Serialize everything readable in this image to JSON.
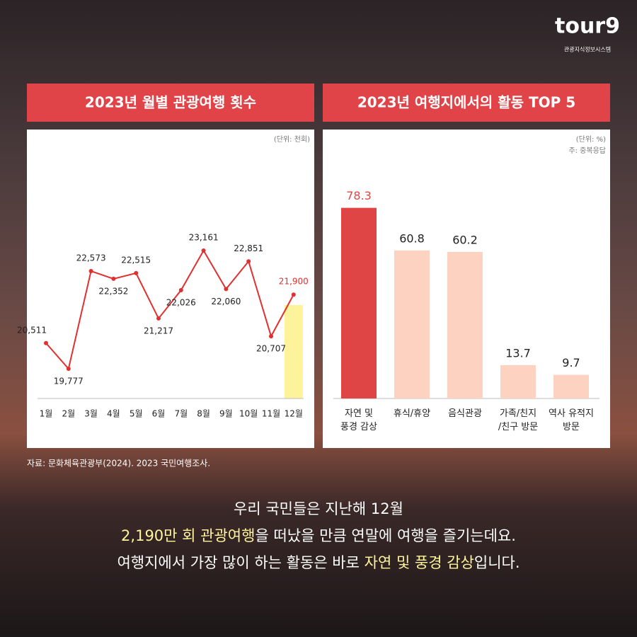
{
  "logo": {
    "brand": "tour9",
    "subtitle": "관광지식정보시스템"
  },
  "chart_data": [
    {
      "type": "line",
      "title": "2023년 월별 관광여행 횟수",
      "unit_note": "(단위: 천회)",
      "categories": [
        "1월",
        "2월",
        "3월",
        "4월",
        "5월",
        "6월",
        "7월",
        "8월",
        "9월",
        "10월",
        "11월",
        "12월"
      ],
      "values": [
        20511,
        19777,
        22573,
        22352,
        22515,
        21217,
        22026,
        23161,
        22060,
        22851,
        20707,
        21900
      ],
      "value_labels": [
        "20,511",
        "19,777",
        "22,573",
        "22,352",
        "22,515",
        "21,217",
        "22,026",
        "23,161",
        "22,060",
        "22,851",
        "20,707",
        "21,900"
      ],
      "color": "#e03030",
      "highlight": {
        "category": "12월",
        "color": "#fdf39a",
        "label_color": "#e03030"
      }
    },
    {
      "type": "bar",
      "title": "2023년 여행지에서의 활동 TOP 5",
      "unit_note": "(단위: %)",
      "note": "주: 중복응답",
      "categories": [
        "자연 및\n풍경 감상",
        "휴식/휴양",
        "음식관광",
        "가족/친지\n/친구 방문",
        "역사 유적지\n방문"
      ],
      "values": [
        78.3,
        60.8,
        60.2,
        13.7,
        9.7
      ],
      "colors": [
        "#e04545",
        "#fdd2c0",
        "#fdd2c0",
        "#fdd2c0",
        "#fdd2c0"
      ],
      "label_colors": [
        "#e04545",
        "#222222",
        "#222222",
        "#222222",
        "#222222"
      ]
    }
  ],
  "source": "자료: 문화체육관광부(2024). 2023 국민여행조사.",
  "caption": {
    "highlight_color": "#fff59d",
    "lines": [
      [
        {
          "text": "우리 국민들은 지난해 12월",
          "highlight": false
        }
      ],
      [
        {
          "text": "2,190만 회 관광여행",
          "highlight": true
        },
        {
          "text": "을 떠났을 만큼 연말에 여행을 즐기는데요.",
          "highlight": false
        }
      ],
      [
        {
          "text": "여행지에서 가장 많이 하는 활동은 바로 ",
          "highlight": false
        },
        {
          "text": "자연 및 풍경 감상",
          "highlight": true
        },
        {
          "text": "입니다.",
          "highlight": false
        }
      ]
    ]
  }
}
